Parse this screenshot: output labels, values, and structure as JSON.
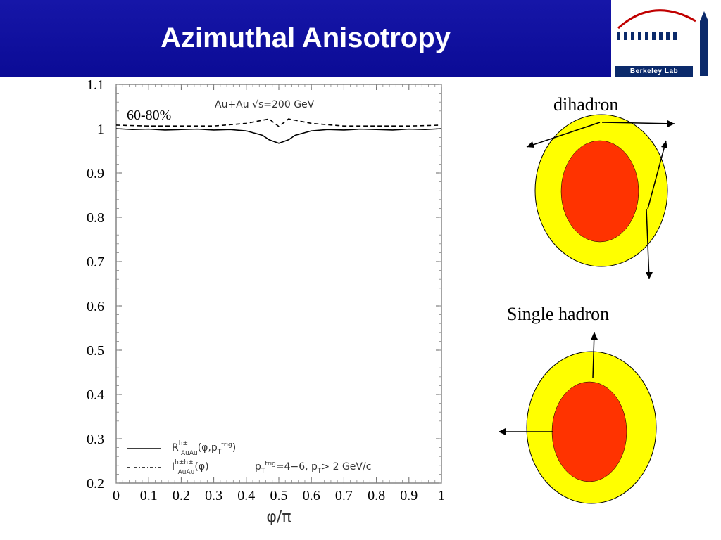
{
  "slide": {
    "title": "Azimuthal Anisotropy",
    "logo_text": "Berkeley Lab"
  },
  "chart_data": {
    "type": "line",
    "title": "",
    "xlabel": "φ/π",
    "ylabel": "",
    "xlim": [
      0,
      1
    ],
    "ylim": [
      0.2,
      1.1
    ],
    "x_ticks": [
      "0",
      "0.1",
      "0.2",
      "0.3",
      "0.4",
      "0.5",
      "0.6",
      "0.7",
      "0.8",
      "0.9",
      "1"
    ],
    "y_ticks": [
      "0.2",
      "0.3",
      "0.4",
      "0.5",
      "0.6",
      "0.7",
      "0.8",
      "0.9",
      "1",
      "1.1"
    ],
    "centrality": "60-80%",
    "system": "Au+Au √s=200 GeV",
    "kinematics": "p_T^trig=4-6, p_T> 2 GeV/c",
    "series": [
      {
        "name": "R_AuAu^h± (φ, p_T^trig)",
        "style": "solid",
        "points": [
          [
            0,
            1.0
          ],
          [
            0.05,
            0.998
          ],
          [
            0.1,
            0.999
          ],
          [
            0.15,
            0.997
          ],
          [
            0.2,
            0.998
          ],
          [
            0.25,
            0.999
          ],
          [
            0.3,
            0.997
          ],
          [
            0.35,
            0.998
          ],
          [
            0.4,
            0.995
          ],
          [
            0.45,
            0.985
          ],
          [
            0.47,
            0.975
          ],
          [
            0.5,
            0.967
          ],
          [
            0.53,
            0.975
          ],
          [
            0.55,
            0.985
          ],
          [
            0.6,
            0.995
          ],
          [
            0.65,
            0.998
          ],
          [
            0.7,
            0.997
          ],
          [
            0.75,
            0.999
          ],
          [
            0.8,
            0.998
          ],
          [
            0.85,
            0.997
          ],
          [
            0.9,
            0.999
          ],
          [
            0.95,
            0.998
          ],
          [
            1.0,
            1.0
          ]
        ]
      },
      {
        "name": "I_AuAu^h±h± (φ)",
        "style": "dashed",
        "points": [
          [
            0,
            1.008
          ],
          [
            0.1,
            1.006
          ],
          [
            0.2,
            1.006
          ],
          [
            0.3,
            1.006
          ],
          [
            0.4,
            1.012
          ],
          [
            0.47,
            1.022
          ],
          [
            0.5,
            1.005
          ],
          [
            0.53,
            1.022
          ],
          [
            0.6,
            1.012
          ],
          [
            0.7,
            1.006
          ],
          [
            0.8,
            1.006
          ],
          [
            0.9,
            1.006
          ],
          [
            1.0,
            1.008
          ]
        ]
      }
    ]
  },
  "diagram": {
    "dihadron_label": "dihadron",
    "single_label": "Single hadron",
    "outer_color": "#ffff00",
    "inner_color": "#ff3300"
  }
}
